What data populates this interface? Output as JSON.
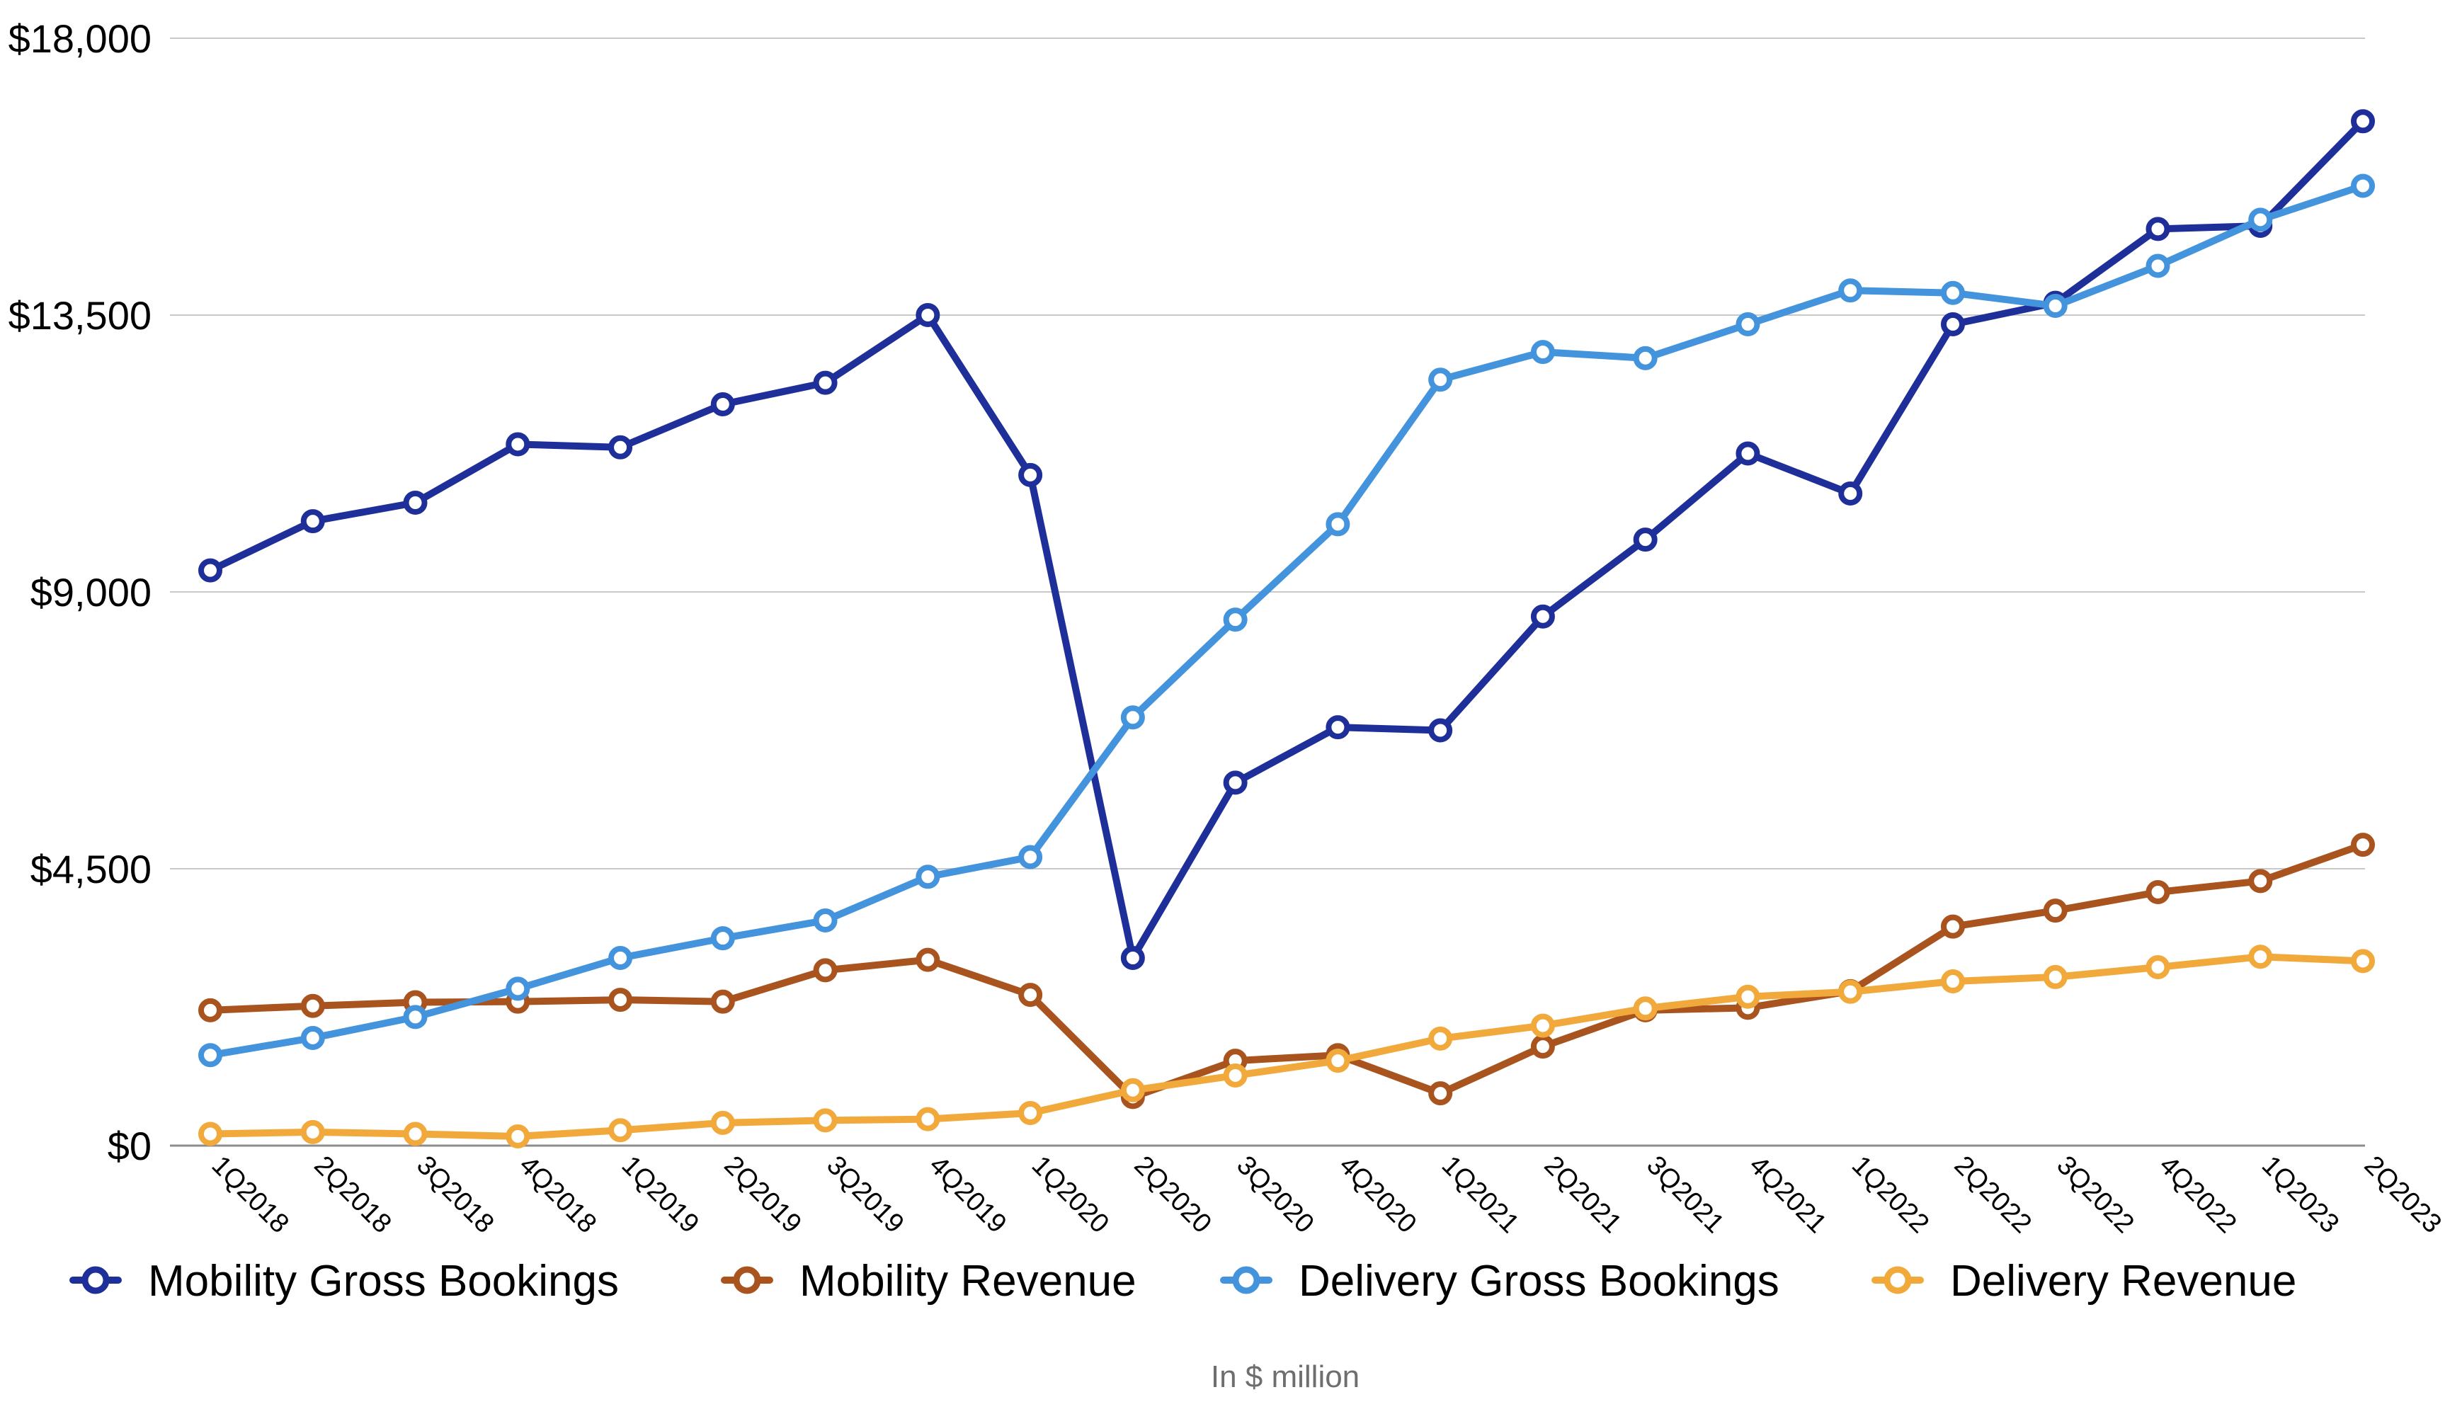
{
  "chart_data": {
    "type": "line",
    "title": "",
    "caption": "In $ million",
    "xlabel": "",
    "ylabel": "",
    "ylim": [
      0,
      18000
    ],
    "y_ticks": [
      0,
      4500,
      9000,
      13500,
      18000
    ],
    "y_tick_labels": [
      "$0",
      "$4,500",
      "$9,000",
      "$13,500",
      "$18,000"
    ],
    "grid": true,
    "legend_position": "bottom",
    "categories": [
      "1Q2018",
      "2Q2018",
      "3Q2018",
      "4Q2018",
      "1Q2019",
      "2Q2019",
      "3Q2019",
      "4Q2019",
      "1Q2020",
      "2Q2020",
      "3Q2020",
      "4Q2020",
      "1Q2021",
      "2Q2021",
      "3Q2021",
      "4Q2021",
      "1Q2022",
      "2Q2022",
      "3Q2022",
      "4Q2022",
      "1Q2023",
      "2Q2023"
    ],
    "series": [
      {
        "name": "Mobility Gross Bookings",
        "color": "#1f2f99",
        "values": [
          9350,
          10150,
          10450,
          11400,
          11350,
          12050,
          12400,
          13500,
          10900,
          3050,
          5900,
          6800,
          6750,
          8600,
          9850,
          11250,
          10600,
          13350,
          13700,
          14900,
          14950,
          16650
        ]
      },
      {
        "name": "Mobility Revenue",
        "color": "#a9541f",
        "values": [
          2200,
          2270,
          2330,
          2340,
          2370,
          2340,
          2850,
          3020,
          2450,
          790,
          1380,
          1470,
          850,
          1610,
          2200,
          2240,
          2510,
          3560,
          3820,
          4120,
          4300,
          4890
        ]
      },
      {
        "name": "Delivery Gross Bookings",
        "color": "#4494dd",
        "values": [
          1470,
          1750,
          2090,
          2550,
          3050,
          3370,
          3660,
          4370,
          4690,
          6960,
          8550,
          10100,
          12450,
          12900,
          12800,
          13350,
          13900,
          13860,
          13650,
          14300,
          15050,
          15600
        ]
      },
      {
        "name": "Delivery Revenue",
        "color": "#f2a93b",
        "values": [
          190,
          220,
          190,
          150,
          250,
          370,
          410,
          430,
          530,
          900,
          1140,
          1380,
          1740,
          1950,
          2230,
          2420,
          2500,
          2670,
          2740,
          2900,
          3070,
          3000
        ]
      }
    ]
  }
}
